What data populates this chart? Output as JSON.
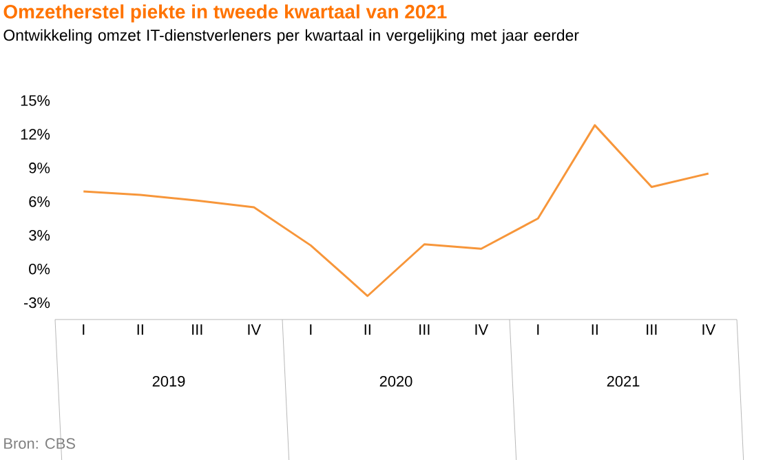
{
  "chart_data": {
    "type": "line",
    "title": "Omzetherstel piekte in tweede kwartaal van 2021",
    "subtitle": "Ontwikkeling omzet IT-dienstverleners per kwartaal in vergelijking met jaar eerder",
    "categories": [
      "I",
      "II",
      "III",
      "IV",
      "I",
      "II",
      "III",
      "IV",
      "I",
      "II",
      "III",
      "IV"
    ],
    "series": [
      {
        "color": "#f7963a",
        "values": [
          6.9,
          6.6,
          6.1,
          5.5,
          2.1,
          -2.4,
          2.2,
          1.8,
          4.5,
          12.8,
          7.3,
          8.5
        ]
      }
    ],
    "ylim": [
      -4.5,
      15
    ],
    "yticks": [
      {
        "value": -3,
        "label": "-3%"
      },
      {
        "value": 0,
        "label": "0%"
      },
      {
        "value": 3,
        "label": "3%"
      },
      {
        "value": 6,
        "label": "6%"
      },
      {
        "value": 9,
        "label": "9%"
      },
      {
        "value": 12,
        "label": "12%"
      },
      {
        "value": 15,
        "label": "15%"
      }
    ],
    "grid": false,
    "marker": "none",
    "line_style": "solid",
    "annotations": [
      "2019",
      "2020",
      "2021",
      "Bron: CBS"
    ]
  }
}
